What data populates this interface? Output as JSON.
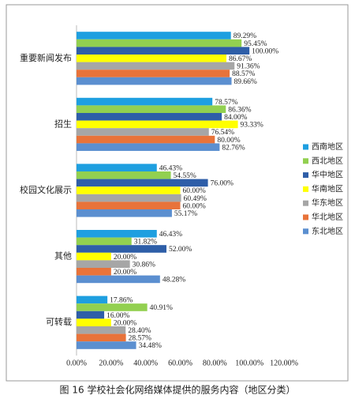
{
  "chart_data": {
    "type": "hbar",
    "title": "图 16  学校社会化网络媒体提供的服务内容（地区分类）",
    "categories": [
      "重要新闻发布",
      "招生",
      "校园文化展示",
      "其他",
      "可转载"
    ],
    "series": [
      {
        "name": "西南地区",
        "color": "#1e9fe0",
        "values": [
          89.29,
          78.57,
          46.43,
          46.43,
          17.86
        ],
        "value_labels": [
          "89.29%",
          "78.57%",
          "46.43%",
          "46.43%",
          "17.86%"
        ]
      },
      {
        "name": "西北地区",
        "color": "#92d050",
        "values": [
          95.45,
          86.36,
          54.55,
          31.82,
          40.91
        ],
        "value_labels": [
          "95.45%",
          "86.36%",
          "54.55%",
          "31.82%",
          "40.91%"
        ]
      },
      {
        "name": "华中地区",
        "color": "#2e5ea8",
        "values": [
          100.0,
          84.0,
          76.0,
          52.0,
          16.0
        ],
        "value_labels": [
          "100.00%",
          "84.00%",
          "76.00%",
          "52.00%",
          "16.00%"
        ]
      },
      {
        "name": "华南地区",
        "color": "#ffff00",
        "values": [
          86.67,
          93.33,
          60.0,
          20.0,
          20.0
        ],
        "value_labels": [
          "86.67%",
          "93.33%",
          "60.00%",
          "20.00%",
          "20.00%"
        ]
      },
      {
        "name": "华东地区",
        "color": "#a6a6a6",
        "values": [
          91.36,
          76.54,
          60.49,
          30.86,
          28.4
        ],
        "value_labels": [
          "91.36%",
          "76.54%",
          "60.49%",
          "30.86%",
          "28.40%"
        ]
      },
      {
        "name": "华北地区",
        "color": "#e8733a",
        "values": [
          88.57,
          80.0,
          60.0,
          20.0,
          28.57
        ],
        "value_labels": [
          "88.57%",
          "80.00%",
          "60.00%",
          "20.00%",
          "28.57%"
        ]
      },
      {
        "name": "东北地区",
        "color": "#5b8fd0",
        "values": [
          89.66,
          82.76,
          55.17,
          48.28,
          34.48
        ],
        "value_labels": [
          "89.66%",
          "82.76%",
          "55.17%",
          "48.28%",
          "34.48%"
        ]
      }
    ],
    "xlim": [
      0,
      120
    ],
    "xticks": [
      {
        "value": 0,
        "label": "0.00%"
      },
      {
        "value": 20,
        "label": "20.00%"
      },
      {
        "value": 40,
        "label": "40.00%"
      },
      {
        "value": 60,
        "label": "60.00%"
      },
      {
        "value": 80,
        "label": "80.00%"
      },
      {
        "value": 100,
        "label": "100.00%"
      },
      {
        "value": 120,
        "label": "120.00%"
      }
    ],
    "grid": false,
    "legend": "right"
  }
}
